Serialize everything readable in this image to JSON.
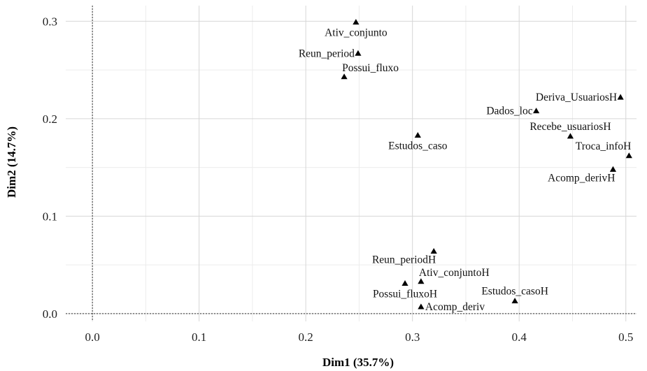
{
  "chart_data": {
    "type": "scatter",
    "title": "",
    "xlabel": "Dim1 (35.7%)",
    "ylabel": "Dim2 (14.7%)",
    "xlim": [
      -0.025,
      0.51
    ],
    "ylim": [
      -0.008,
      0.316
    ],
    "x_ticks": [
      0.0,
      0.1,
      0.2,
      0.3,
      0.4,
      0.5
    ],
    "x_tick_labels": [
      "0.0",
      "0.1",
      "0.2",
      "0.3",
      "0.4",
      "0.5"
    ],
    "y_ticks": [
      0.0,
      0.1,
      0.2,
      0.3
    ],
    "y_tick_labels": [
      "0.0",
      "0.1",
      "0.2",
      "0.3"
    ],
    "grid": true,
    "marker": "triangle",
    "reference_lines": {
      "x": 0,
      "y": 0,
      "style": "dotted"
    },
    "points": [
      {
        "label": "Ativ_conjunto",
        "x": 0.247,
        "y": 0.299,
        "label_pos": "below"
      },
      {
        "label": "Reun_period",
        "x": 0.249,
        "y": 0.267,
        "label_pos": "left"
      },
      {
        "label": "Possui_fluxo",
        "x": 0.236,
        "y": 0.243,
        "label_pos": "above-right"
      },
      {
        "label": "Deriva_UsuariosH",
        "x": 0.495,
        "y": 0.222,
        "label_pos": "left"
      },
      {
        "label": "Dados_loc",
        "x": 0.416,
        "y": 0.208,
        "label_pos": "left"
      },
      {
        "label": "Estudos_caso",
        "x": 0.305,
        "y": 0.183,
        "label_pos": "below"
      },
      {
        "label": "Recebe_usuariosH",
        "x": 0.448,
        "y": 0.182,
        "label_pos": "above"
      },
      {
        "label": "Troca_infoH",
        "x": 0.503,
        "y": 0.162,
        "label_pos": "above-left"
      },
      {
        "label": "Acomp_derivH",
        "x": 0.488,
        "y": 0.148,
        "label_pos": "below-left"
      },
      {
        "label": "Reun_periodH",
        "x": 0.32,
        "y": 0.064,
        "label_pos": "below-left"
      },
      {
        "label": "Ativ_conjuntoH",
        "x": 0.308,
        "y": 0.033,
        "label_pos": "above-right"
      },
      {
        "label": "Possui_fluxoH",
        "x": 0.293,
        "y": 0.031,
        "label_pos": "below"
      },
      {
        "label": "Estudos_casoH",
        "x": 0.396,
        "y": 0.013,
        "label_pos": "above"
      },
      {
        "label": "Acomp_deriv",
        "x": 0.308,
        "y": 0.007,
        "label_pos": "right"
      }
    ]
  }
}
